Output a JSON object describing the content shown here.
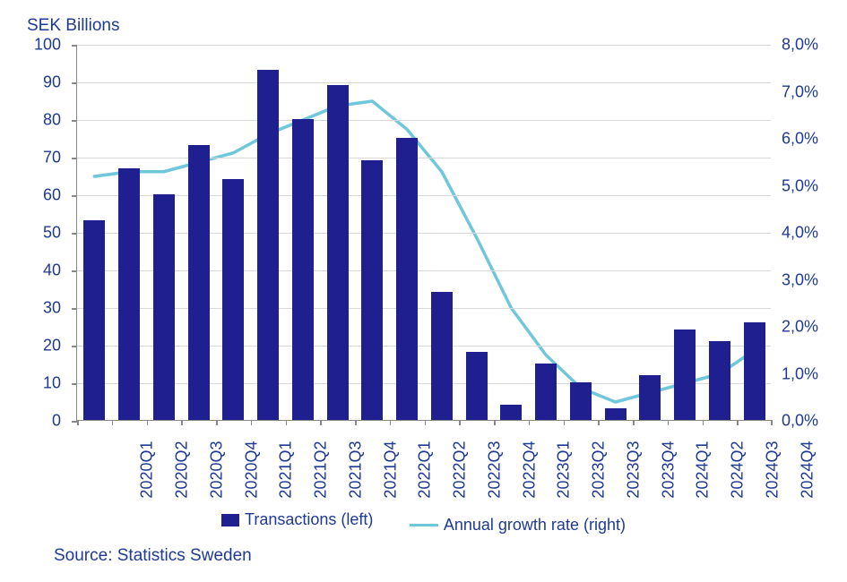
{
  "chart": {
    "type": "bar+line",
    "title": "SEK Billions",
    "source": "Source: Statistics Sweden",
    "background_color": "#ffffff",
    "grid_color": "#d9d9d9",
    "axis_color": "#888888",
    "text_color": "#1f3a93",
    "title_fontsize": 19,
    "label_fontsize": 18,
    "categories": [
      "2020Q1",
      "2020Q2",
      "2020Q3",
      "2020Q4",
      "2021Q1",
      "2021Q2",
      "2021Q3",
      "2021Q4",
      "2022Q1",
      "2022Q2",
      "2022Q3",
      "2022Q4",
      "2023Q1",
      "2023Q2",
      "2023Q3",
      "2023Q4",
      "2024Q1",
      "2024Q2",
      "2024Q3",
      "2024Q4"
    ],
    "bars": {
      "label": "Transactions (left)",
      "values": [
        53,
        67,
        60,
        73,
        64,
        93,
        80,
        89,
        69,
        75,
        34,
        18,
        4,
        15,
        10,
        3,
        12,
        24,
        21,
        26
      ],
      "color": "#1f1f8f",
      "bar_width_ratio": 0.62
    },
    "line": {
      "label": "Annual growth rate (right)",
      "values": [
        5.2,
        5.3,
        5.3,
        5.5,
        5.7,
        6.1,
        6.4,
        6.7,
        6.8,
        6.2,
        5.3,
        3.9,
        2.4,
        1.4,
        0.7,
        0.4,
        0.6,
        0.8,
        1.0,
        1.5
      ],
      "color": "#6fc7d9",
      "line_width": 3.5
    },
    "y_left": {
      "min": 0,
      "max": 100,
      "step": 10,
      "labels": [
        "0",
        "10",
        "20",
        "30",
        "40",
        "50",
        "60",
        "70",
        "80",
        "90",
        "100"
      ]
    },
    "y_right": {
      "min": 0,
      "max": 8,
      "step": 1,
      "labels": [
        "0,0%",
        "1,0%",
        "2,0%",
        "3,0%",
        "4,0%",
        "5,0%",
        "6,0%",
        "7,0%",
        "8,0%"
      ]
    }
  }
}
